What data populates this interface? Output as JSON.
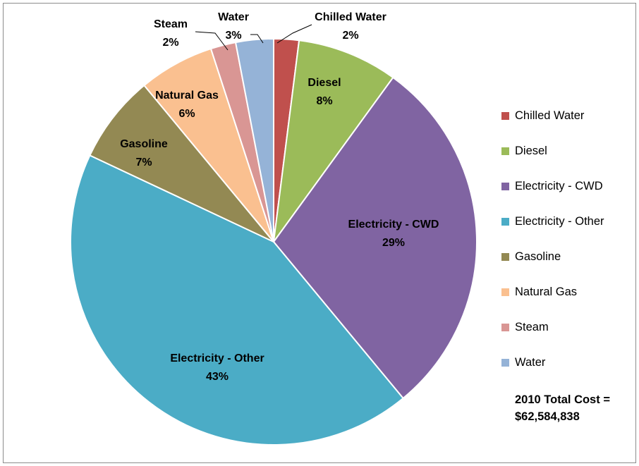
{
  "chart_data": {
    "type": "pie",
    "slices": [
      {
        "name": "Chilled Water",
        "value": 2,
        "label": "Chilled Water",
        "pct_label": "2%",
        "color": "#c0504d"
      },
      {
        "name": "Diesel",
        "value": 8,
        "label": "Diesel",
        "pct_label": "8%",
        "color": "#9bbb59"
      },
      {
        "name": "Electricity - CWD",
        "value": 29,
        "label": "Electricity - CWD",
        "pct_label": "29%",
        "color": "#8064a2"
      },
      {
        "name": "Electricity - Other",
        "value": 43,
        "label": "Electricity - Other",
        "pct_label": "43%",
        "color": "#4bacc6"
      },
      {
        "name": "Gasoline",
        "value": 7,
        "label": "Gasoline",
        "pct_label": "7%",
        "color": "#938953"
      },
      {
        "name": "Natural Gas",
        "value": 6,
        "label": "Natural Gas",
        "pct_label": "6%",
        "color": "#fac090"
      },
      {
        "name": "Steam",
        "value": 2,
        "label": "Steam",
        "pct_label": "2%",
        "color": "#d99694"
      },
      {
        "name": "Water",
        "value": 3,
        "label": "Water",
        "pct_label": "3%",
        "color": "#95b3d7"
      }
    ],
    "legend_position": "right",
    "annotation": {
      "line1": "2010 Total Cost =",
      "line2": "$62,584,838"
    }
  }
}
